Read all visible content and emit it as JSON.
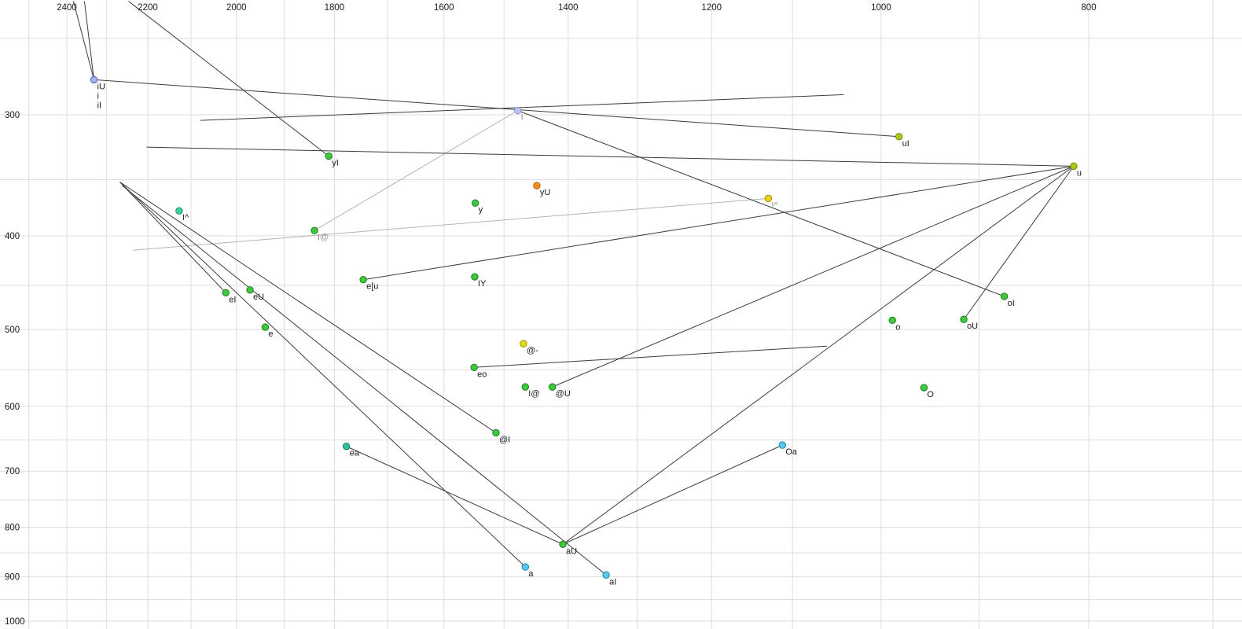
{
  "colors": {
    "background": "#ffffff",
    "grid": "#dddddd",
    "line": "#3c3c3c",
    "muted_line": "#b4b4b4",
    "tick": "#1a1a1a",
    "label": "#1a1a1a",
    "muted_label": "#999999"
  },
  "chart_data": {
    "type": "scatter",
    "title": "",
    "xlabel": "",
    "ylabel": "",
    "x_axis": {
      "ticks": [
        2400,
        2200,
        2000,
        1800,
        1600,
        1400,
        1200,
        1000,
        800
      ],
      "scale": "log",
      "reversed": true,
      "grid_min": 700,
      "grid_max": 2500,
      "grid_step": 100
    },
    "y_axis": {
      "ticks": [
        300,
        400,
        500,
        600,
        700,
        800,
        900,
        1000
      ],
      "scale": "log",
      "increases_downward": true,
      "grid_min": 250,
      "grid_max": 1050,
      "grid_step": 50
    },
    "points": [
      {
        "label": "iU",
        "f2": 2331,
        "f1": 276,
        "fill": "#9fb4ee",
        "stroke": "#4a5fc0",
        "extra_labels": [
          "i",
          "iI"
        ]
      },
      {
        "label": "I",
        "f2": 1478,
        "f1": 297,
        "fill": "#bcc5f0",
        "stroke": "#8d97d0",
        "muted_label": true
      },
      {
        "label": "uI",
        "f2": 981,
        "f1": 316,
        "fill": "#a9c919",
        "stroke": "#6e8a00"
      },
      {
        "label": "u",
        "f2": 813,
        "f1": 339,
        "fill": "#a9c919",
        "stroke": "#6e8a00"
      },
      {
        "label": "yI",
        "f2": 1811,
        "f1": 331,
        "fill": "#3fc73f",
        "stroke": "#1d7f1d"
      },
      {
        "label": "yU",
        "f2": 1448,
        "f1": 355,
        "fill": "#ff8c1e",
        "stroke": "#b25c00"
      },
      {
        "label": "y",
        "f2": 1547,
        "f1": 370,
        "fill": "#3fc73f",
        "stroke": "#1d7f1d"
      },
      {
        "label": "I^",
        "f2": 1129,
        "f1": 366,
        "fill": "#f0d312",
        "stroke": "#a89000",
        "muted_label": true
      },
      {
        "label": "I^",
        "f2": 2127,
        "f1": 377,
        "fill": "#3fd0a0",
        "stroke": "#168f68"
      },
      {
        "label": "I@",
        "f2": 1839,
        "f1": 395,
        "fill": "#3fc73f",
        "stroke": "#1d7f1d",
        "muted_label": true
      },
      {
        "label": "e[u",
        "f2": 1745,
        "f1": 444,
        "fill": "#3fc73f",
        "stroke": "#1d7f1d"
      },
      {
        "label": "IY",
        "f2": 1548,
        "f1": 441,
        "fill": "#3fc73f",
        "stroke": "#1d7f1d"
      },
      {
        "label": "eI",
        "f2": 2023,
        "f1": 458,
        "fill": "#3fc73f",
        "stroke": "#1d7f1d"
      },
      {
        "label": "eU",
        "f2": 1971,
        "f1": 455,
        "fill": "#3fc73f",
        "stroke": "#1d7f1d"
      },
      {
        "label": "e",
        "f2": 1939,
        "f1": 497,
        "fill": "#3fc73f",
        "stroke": "#1d7f1d"
      },
      {
        "label": "oI",
        "f2": 876,
        "f1": 462,
        "fill": "#3fc73f",
        "stroke": "#1d7f1d"
      },
      {
        "label": "o",
        "f2": 988,
        "f1": 489,
        "fill": "#3fc73f",
        "stroke": "#1d7f1d"
      },
      {
        "label": "oU",
        "f2": 915,
        "f1": 488,
        "fill": "#3fc73f",
        "stroke": "#1d7f1d"
      },
      {
        "label": "@-",
        "f2": 1469,
        "f1": 517,
        "fill": "#e3da10",
        "stroke": "#9b9400"
      },
      {
        "label": "eo",
        "f2": 1549,
        "f1": 547,
        "fill": "#3fc73f",
        "stroke": "#1d7f1d"
      },
      {
        "label": "I@",
        "f2": 1466,
        "f1": 573,
        "fill": "#3fc73f",
        "stroke": "#1d7f1d"
      },
      {
        "label": "@U",
        "f2": 1424,
        "f1": 573,
        "fill": "#3fc73f",
        "stroke": "#1d7f1d"
      },
      {
        "label": "O",
        "f2": 955,
        "f1": 574,
        "fill": "#3fc73f",
        "stroke": "#1d7f1d"
      },
      {
        "label": "@I",
        "f2": 1513,
        "f1": 639,
        "fill": "#3fc73f",
        "stroke": "#1d7f1d"
      },
      {
        "label": "ea",
        "f2": 1777,
        "f1": 660,
        "fill": "#2fbf9b",
        "stroke": "#148069"
      },
      {
        "label": "Oa",
        "f2": 1112,
        "f1": 658,
        "fill": "#5ac9e9",
        "stroke": "#1d87a8"
      },
      {
        "label": "aU",
        "f2": 1408,
        "f1": 833,
        "fill": "#3fc73f",
        "stroke": "#1d7f1d"
      },
      {
        "label": "a",
        "f2": 1466,
        "f1": 879,
        "fill": "#5ac9e9",
        "stroke": "#1d87a8"
      },
      {
        "label": "aI",
        "f2": 1344,
        "f1": 896,
        "fill": "#5ac9e9",
        "stroke": "#1d87a8"
      }
    ],
    "segments": [
      {
        "from": [
          2383,
          229
        ],
        "to": [
          2331,
          276
        ]
      },
      {
        "from": [
          2355,
          229
        ],
        "to": [
          2331,
          276
        ]
      },
      {
        "from": [
          2331,
          276
        ],
        "to": [
          981,
          316
        ]
      },
      {
        "from": [
          2203,
          324
        ],
        "to": [
          813,
          339
        ]
      },
      {
        "from": [
          2246,
          229
        ],
        "to": [
          1811,
          331
        ]
      },
      {
        "from": [
          2079,
          304
        ],
        "to": [
          1041,
          286
        ]
      },
      {
        "from": [
          2267,
          352
        ],
        "to": [
          2023,
          458
        ]
      },
      {
        "from": [
          2267,
          352
        ],
        "to": [
          1466,
          879
        ]
      },
      {
        "from": [
          2261,
          355
        ],
        "to": [
          1344,
          896
        ]
      },
      {
        "from": [
          2267,
          352
        ],
        "to": [
          1513,
          639
        ]
      },
      {
        "from": [
          1777,
          660
        ],
        "to": [
          1408,
          833
        ]
      },
      {
        "from": [
          1408,
          833
        ],
        "to": [
          813,
          339
        ]
      },
      {
        "from": [
          1112,
          658
        ],
        "to": [
          1408,
          833
        ]
      },
      {
        "from": [
          1424,
          573
        ],
        "to": [
          813,
          339
        ]
      },
      {
        "from": [
          915,
          488
        ],
        "to": [
          813,
          339
        ]
      },
      {
        "from": [
          1745,
          444
        ],
        "to": [
          813,
          339
        ]
      },
      {
        "from": [
          1549,
          547
        ],
        "to": [
          1060,
          520
        ]
      },
      {
        "from": [
          876,
          462
        ],
        "to": [
          1478,
          297
        ]
      },
      {
        "from": [
          2236,
          414
        ],
        "to": [
          1129,
          366
        ],
        "gray": true
      },
      {
        "from": [
          1839,
          395
        ],
        "to": [
          1478,
          297
        ],
        "gray": true
      }
    ]
  }
}
